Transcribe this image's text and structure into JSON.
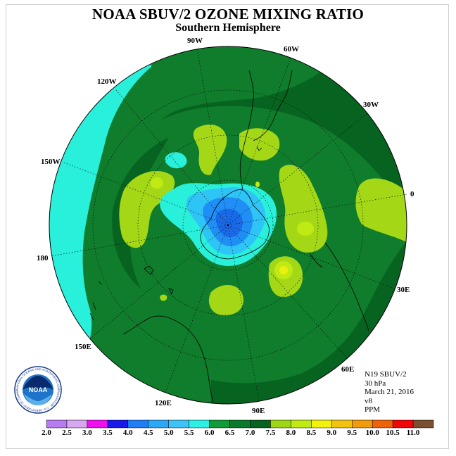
{
  "title": "NOAA SBUV/2 OZONE MIXING RATIO",
  "subtitle": "Southern Hemisphere",
  "longitude_labels": {
    "90W": "90W",
    "60W": "60W",
    "30W": "30W",
    "0": "0",
    "120W": "120W",
    "150W": "150W",
    "180": "180",
    "150E": "150E",
    "120E": "120E",
    "90E": "90E",
    "60E": "60E",
    "30E": "30E"
  },
  "info": {
    "instrument": "N19 SBUV/2",
    "pressure": "30 hPa",
    "date": "March 21, 2016",
    "version": "v8",
    "units": "PPM"
  },
  "logo": {
    "text": "NOAA",
    "ring_text": "NATIONAL OCEANIC AND ATMOSPHERIC ADMINISTRATION · U.S. DEPARTMENT OF COMMERCE"
  },
  "colorbar": {
    "labels": [
      "2.0",
      "2.5",
      "3.0",
      "3.5",
      "4.0",
      "4.5",
      "5.0",
      "5.5",
      "6.0",
      "6.5",
      "7.0",
      "7.5",
      "8.0",
      "8.5",
      "9.0",
      "9.5",
      "10.0",
      "10.5",
      "11.0"
    ],
    "colors": [
      "#b77cf0",
      "#d9a6f2",
      "#ee10ee",
      "#1a1ae8",
      "#1f7ef5",
      "#2aa8f5",
      "#3cc4f6",
      "#2ff0e4",
      "#139b39",
      "#0b7a2b",
      "#076320",
      "#9ed617",
      "#c0ea14",
      "#f2f20e",
      "#f0c40e",
      "#f09a0c",
      "#f0620a",
      "#f00808",
      "#7a5030"
    ]
  },
  "colors": {
    "ocean_land": "#0f7d2c",
    "dark_green": "#076320",
    "cyan": "#29f0da",
    "light_blue": "#2ec4f5",
    "mid_blue": "#1f8ff5",
    "blue": "#1a6ae8",
    "yellow_green": "#a4d817",
    "yellow": "#ecf00e"
  }
}
